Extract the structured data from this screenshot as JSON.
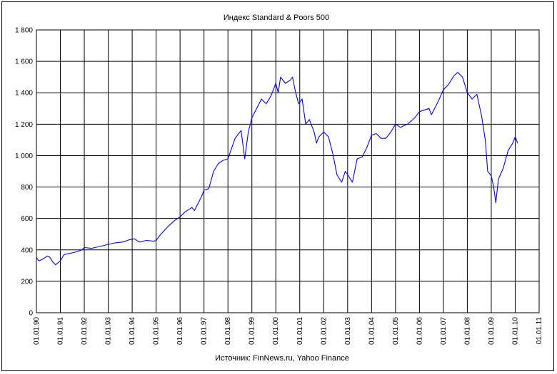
{
  "chart_data": {
    "type": "line",
    "title": "Индекс Standard & Poors 500",
    "source": "Источник: FinNews.ru, Yahoo Finance",
    "ylim": [
      0,
      1800
    ],
    "yticks": [
      0,
      200,
      400,
      600,
      800,
      1000,
      1200,
      1400,
      1600,
      1800
    ],
    "ytick_labels": [
      "0",
      "200",
      "400",
      "600",
      "800",
      "1 000",
      "1 200",
      "1 400",
      "1 600",
      "1 800"
    ],
    "xlim": [
      1990,
      2011
    ],
    "xticks": [
      1990,
      1991,
      1992,
      1993,
      1994,
      1995,
      1996,
      1997,
      1998,
      1999,
      2000,
      2001,
      2002,
      2003,
      2004,
      2005,
      2006,
      2007,
      2008,
      2009,
      2010,
      2011
    ],
    "xtick_labels": [
      "01.01.90",
      "01.01.91",
      "01.01.92",
      "01.01.93",
      "01.01.94",
      "01.01.95",
      "01.01.96",
      "01.01.97",
      "01.01.98",
      "01.01.99",
      "01.01.00",
      "01.01.01",
      "01.01.02",
      "01.01.03",
      "01.01.04",
      "01.01.05",
      "01.01.06",
      "01.01.07",
      "01.01.08",
      "01.01.09",
      "01.01.10",
      "01.01.11"
    ],
    "grid": true,
    "line_color": "#0000ff",
    "series": [
      {
        "x": [
          1990.0,
          1990.1,
          1990.25,
          1990.45,
          1990.55,
          1990.7,
          1990.8,
          1991.0,
          1991.15,
          1991.3,
          1991.6,
          1991.9,
          1992.0,
          1992.3,
          1992.6,
          1993.0,
          1993.3,
          1993.6,
          1993.9,
          1994.1,
          1994.3,
          1994.6,
          1994.9,
          1995.0,
          1995.2,
          1995.5,
          1995.8,
          1996.0,
          1996.2,
          1996.5,
          1996.6,
          1996.9,
          1997.0,
          1997.2,
          1997.4,
          1997.6,
          1997.8,
          1998.0,
          1998.3,
          1998.55,
          1998.7,
          1998.85,
          1999.0,
          1999.2,
          1999.4,
          1999.6,
          1999.8,
          2000.0,
          2000.1,
          2000.2,
          2000.4,
          2000.6,
          2000.7,
          2000.8,
          2000.95,
          2001.1,
          2001.25,
          2001.4,
          2001.6,
          2001.7,
          2001.8,
          2002.0,
          2002.2,
          2002.4,
          2002.55,
          2002.75,
          2002.9,
          2003.0,
          2003.2,
          2003.4,
          2003.6,
          2003.8,
          2004.0,
          2004.2,
          2004.4,
          2004.6,
          2004.8,
          2005.0,
          2005.2,
          2005.5,
          2005.8,
          2006.0,
          2006.4,
          2006.5,
          2006.8,
          2007.0,
          2007.2,
          2007.45,
          2007.6,
          2007.8,
          2008.0,
          2008.2,
          2008.4,
          2008.6,
          2008.75,
          2008.85,
          2009.0,
          2009.1,
          2009.19,
          2009.3,
          2009.5,
          2009.7,
          2009.9,
          2010.0,
          2010.1
        ],
        "y": [
          350,
          330,
          340,
          360,
          355,
          320,
          305,
          330,
          370,
          375,
          385,
          400,
          415,
          410,
          420,
          435,
          445,
          450,
          465,
          470,
          450,
          460,
          455,
          460,
          500,
          550,
          590,
          610,
          640,
          670,
          650,
          740,
          780,
          790,
          900,
          950,
          970,
          980,
          1110,
          1160,
          980,
          1150,
          1240,
          1300,
          1360,
          1330,
          1380,
          1460,
          1400,
          1500,
          1460,
          1480,
          1500,
          1420,
          1330,
          1360,
          1200,
          1230,
          1150,
          1080,
          1120,
          1150,
          1120,
          1000,
          880,
          830,
          900,
          880,
          830,
          980,
          990,
          1050,
          1130,
          1140,
          1110,
          1110,
          1150,
          1200,
          1180,
          1200,
          1240,
          1280,
          1300,
          1260,
          1350,
          1420,
          1450,
          1510,
          1530,
          1500,
          1400,
          1360,
          1390,
          1250,
          1100,
          900,
          870,
          800,
          700,
          850,
          920,
          1030,
          1080,
          1120,
          1080
        ]
      }
    ]
  }
}
